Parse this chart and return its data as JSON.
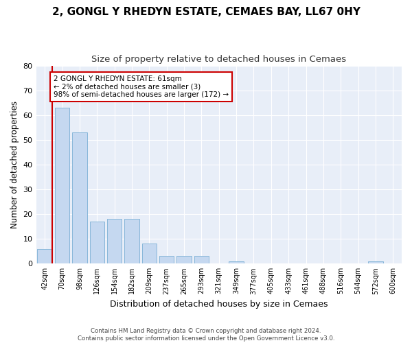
{
  "title": "2, GONGL Y RHEDYN ESTATE, CEMAES BAY, LL67 0HY",
  "subtitle": "Size of property relative to detached houses in Cemaes",
  "xlabel": "Distribution of detached houses by size in Cemaes",
  "ylabel": "Number of detached properties",
  "categories": [
    "42sqm",
    "70sqm",
    "98sqm",
    "126sqm",
    "154sqm",
    "182sqm",
    "209sqm",
    "237sqm",
    "265sqm",
    "293sqm",
    "321sqm",
    "349sqm",
    "377sqm",
    "405sqm",
    "433sqm",
    "461sqm",
    "488sqm",
    "516sqm",
    "544sqm",
    "572sqm",
    "600sqm"
  ],
  "values": [
    6,
    63,
    53,
    17,
    18,
    18,
    8,
    3,
    3,
    3,
    0,
    1,
    0,
    0,
    0,
    0,
    0,
    0,
    0,
    1,
    0
  ],
  "bar_color": "#c5d8f0",
  "bar_edge_color": "#7aafd4",
  "highlight_color": "#cc0000",
  "ylim": [
    0,
    80
  ],
  "yticks": [
    0,
    10,
    20,
    30,
    40,
    50,
    60,
    70,
    80
  ],
  "annotation_line1": "2 GONGL Y RHEDYN ESTATE: 61sqm",
  "annotation_line2": "← 2% of detached houses are smaller (3)",
  "annotation_line3": "98% of semi-detached houses are larger (172) →",
  "annotation_box_color": "#cc0000",
  "footnote": "Contains HM Land Registry data © Crown copyright and database right 2024.\nContains public sector information licensed under the Open Government Licence v3.0.",
  "bg_color": "#ffffff",
  "plot_bg_color": "#e8eef8",
  "grid_color": "#ffffff",
  "title_fontsize": 11,
  "subtitle_fontsize": 9.5,
  "tick_fontsize": 7,
  "ylabel_fontsize": 8.5,
  "xlabel_fontsize": 9
}
